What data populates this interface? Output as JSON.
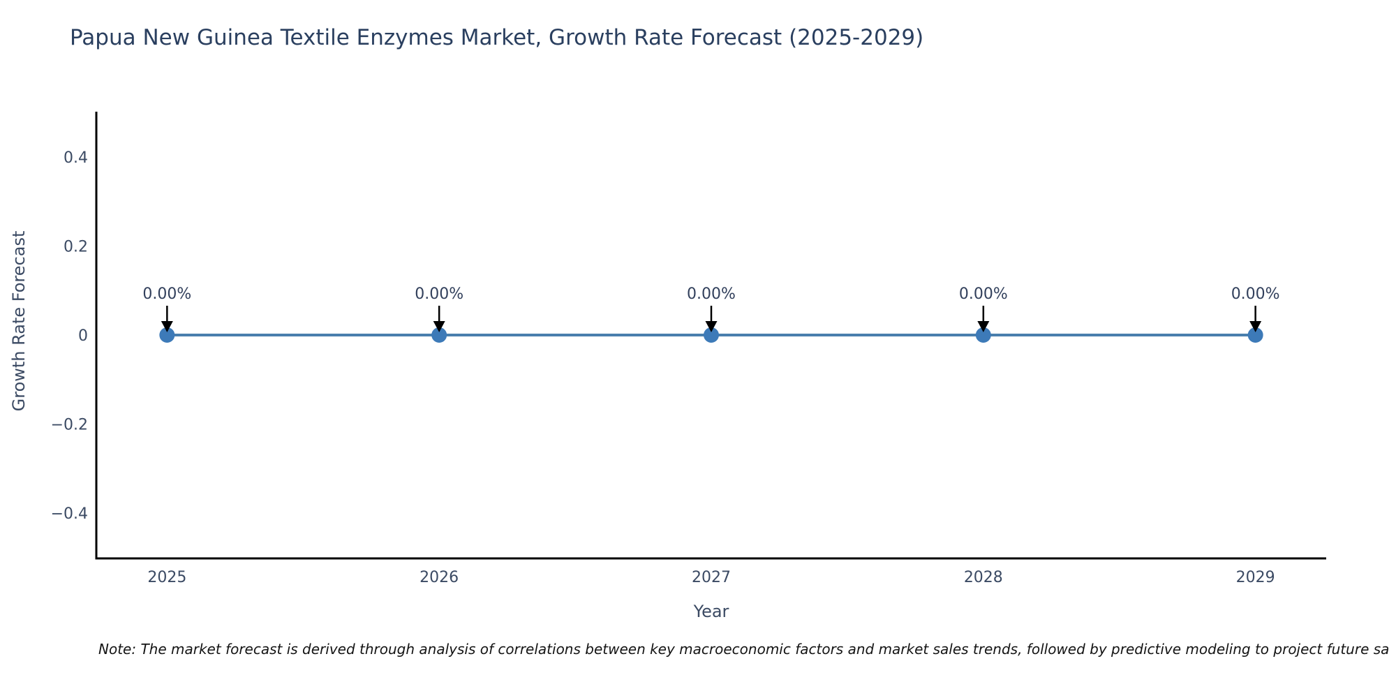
{
  "chart_data": {
    "type": "line",
    "title": "Papua New Guinea Textile Enzymes Market, Growth Rate Forecast (2025-2029)",
    "xlabel": "Year",
    "ylabel": "Growth Rate Forecast",
    "x": [
      2025,
      2026,
      2027,
      2028,
      2029
    ],
    "values": [
      0,
      0,
      0,
      0,
      0
    ],
    "annotations": [
      "0.00%",
      "0.00%",
      "0.00%",
      "0.00%",
      "0.00%"
    ],
    "xtick_labels": [
      "2025",
      "2026",
      "2027",
      "2028",
      "2029"
    ],
    "ytick_values": [
      0.4,
      0.2,
      0,
      -0.2,
      -0.4
    ],
    "ytick_labels": [
      "0.4",
      "0.2",
      "0",
      "−0.2",
      "−0.4"
    ],
    "xlim": [
      2024.74,
      2029.26
    ],
    "ylim": [
      -0.502,
      0.502
    ],
    "grid": false,
    "legend": "none",
    "line_color": "#4a7fad",
    "marker_color": "#3d7ab8",
    "arrow_color": "#000000",
    "axis_color": "#000000"
  },
  "note": "Note: The market forecast is derived through analysis of correlations between key macroeconomic factors and market sales trends, followed by predictive modeling to project future sa"
}
